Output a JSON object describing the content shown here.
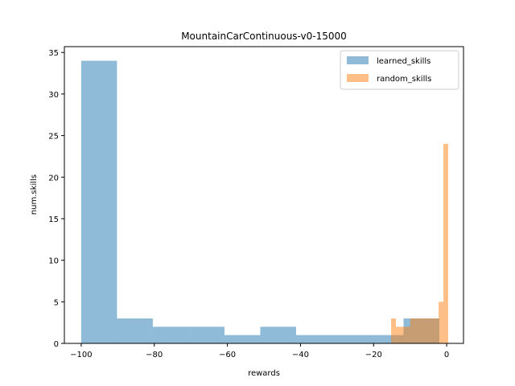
{
  "chart_data": {
    "type": "bar",
    "title": "MountainCarContinuous-v0-15000",
    "xlabel": "rewards",
    "ylabel": "num.skills",
    "xlim": [
      -104.6,
      4.6
    ],
    "ylim": [
      0,
      35.7
    ],
    "x_ticks": [
      -100,
      -80,
      -60,
      -40,
      -20,
      0
    ],
    "x_tick_labels": [
      "−100",
      "−80",
      "−60",
      "−40",
      "−20",
      "0"
    ],
    "y_ticks": [
      0,
      5,
      10,
      15,
      20,
      25,
      30,
      35
    ],
    "y_tick_labels": [
      "0",
      "5",
      "10",
      "15",
      "20",
      "25",
      "30",
      "35"
    ],
    "grid": false,
    "legend_position": "top-right",
    "series": [
      {
        "name": "learned_skills",
        "color": "#1f77b4",
        "opacity": 0.5,
        "bins": [
          {
            "x0": -100.0,
            "x1": -90.2,
            "count": 34
          },
          {
            "x0": -90.2,
            "x1": -80.4,
            "count": 3
          },
          {
            "x0": -80.4,
            "x1": -70.6,
            "count": 2
          },
          {
            "x0": -70.6,
            "x1": -60.8,
            "count": 2
          },
          {
            "x0": -60.8,
            "x1": -51.0,
            "count": 1
          },
          {
            "x0": -51.0,
            "x1": -41.2,
            "count": 2
          },
          {
            "x0": -41.2,
            "x1": -31.4,
            "count": 1
          },
          {
            "x0": -31.4,
            "x1": -21.6,
            "count": 1
          },
          {
            "x0": -21.6,
            "x1": -11.8,
            "count": 1
          },
          {
            "x0": -11.8,
            "x1": -2.0,
            "count": 3
          }
        ]
      },
      {
        "name": "random_skills",
        "color": "#ff7f0e",
        "opacity": 0.5,
        "bins": [
          {
            "x0": -15.2,
            "x1": -13.9,
            "count": 3
          },
          {
            "x0": -13.9,
            "x1": -12.6,
            "count": 2
          },
          {
            "x0": -12.6,
            "x1": -11.3,
            "count": 2
          },
          {
            "x0": -11.3,
            "x1": -10.0,
            "count": 2
          },
          {
            "x0": -10.0,
            "x1": -8.7,
            "count": 3
          },
          {
            "x0": -8.7,
            "x1": -7.4,
            "count": 3
          },
          {
            "x0": -7.4,
            "x1": -6.1,
            "count": 3
          },
          {
            "x0": -6.1,
            "x1": -4.8,
            "count": 3
          },
          {
            "x0": -4.8,
            "x1": -3.5,
            "count": 3
          },
          {
            "x0": -3.5,
            "x1": -2.2,
            "count": 3
          },
          {
            "x0": -2.2,
            "x1": -0.9,
            "count": 5
          },
          {
            "x0": -0.9,
            "x1": 0.4,
            "count": 24
          }
        ]
      }
    ]
  }
}
